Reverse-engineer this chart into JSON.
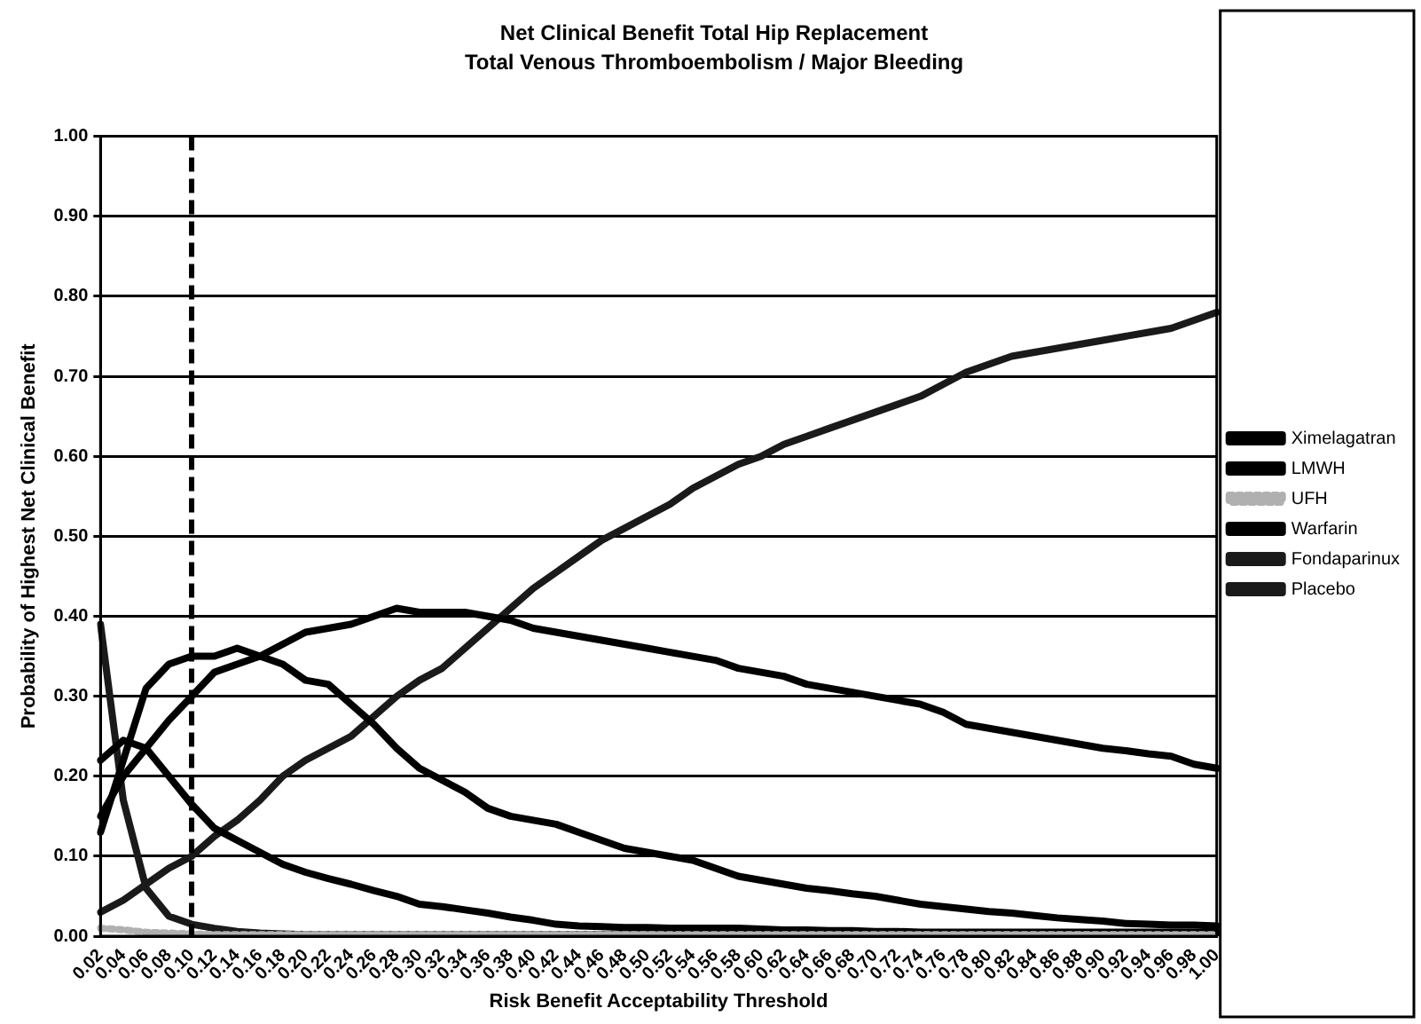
{
  "chart_data": {
    "type": "line",
    "title": "Net Clinical Benefit Total Hip Replacement",
    "subtitle": "Total Venous Thromboembolism / Major Bleeding",
    "xlabel": "Risk Benefit Acceptability Threshold",
    "ylabel": "Probability of Highest Net Clinical Benefit",
    "categories": [
      "0.02",
      "0.04",
      "0.06",
      "0.08",
      "0.10",
      "0.12",
      "0.14",
      "0.16",
      "0.18",
      "0.20",
      "0.22",
      "0.24",
      "0.26",
      "0.28",
      "0.30",
      "0.32",
      "0.34",
      "0.36",
      "0.38",
      "0.40",
      "0.42",
      "0.44",
      "0.46",
      "0.48",
      "0.50",
      "0.52",
      "0.54",
      "0.56",
      "0.58",
      "0.60",
      "0.62",
      "0.64",
      "0.66",
      "0.68",
      "0.70",
      "0.72",
      "0.74",
      "0.76",
      "0.78",
      "0.80",
      "0.82",
      "0.84",
      "0.86",
      "0.88",
      "0.90",
      "0.92",
      "0.94",
      "0.96",
      "0.98",
      "1.00"
    ],
    "series": [
      {
        "name": "Ximelagatran",
        "color": "#000000",
        "values": [
          0.15,
          0.2,
          0.235,
          0.27,
          0.3,
          0.33,
          0.34,
          0.35,
          0.365,
          0.38,
          0.385,
          0.39,
          0.4,
          0.41,
          0.405,
          0.405,
          0.405,
          0.4,
          0.395,
          0.385,
          0.38,
          0.375,
          0.37,
          0.365,
          0.36,
          0.355,
          0.35,
          0.345,
          0.335,
          0.33,
          0.325,
          0.315,
          0.31,
          0.305,
          0.3,
          0.295,
          0.29,
          0.28,
          0.265,
          0.26,
          0.255,
          0.25,
          0.245,
          0.24,
          0.235,
          0.232,
          0.228,
          0.225,
          0.215,
          0.21
        ]
      },
      {
        "name": "LMWH",
        "color": "#000000",
        "values": [
          0.13,
          0.22,
          0.31,
          0.34,
          0.35,
          0.35,
          0.36,
          0.35,
          0.34,
          0.32,
          0.315,
          0.29,
          0.265,
          0.235,
          0.21,
          0.195,
          0.18,
          0.16,
          0.15,
          0.145,
          0.14,
          0.13,
          0.12,
          0.11,
          0.105,
          0.1,
          0.095,
          0.085,
          0.075,
          0.07,
          0.065,
          0.06,
          0.057,
          0.053,
          0.05,
          0.045,
          0.04,
          0.037,
          0.034,
          0.031,
          0.029,
          0.026,
          0.023,
          0.021,
          0.019,
          0.016,
          0.015,
          0.014,
          0.014,
          0.013
        ]
      },
      {
        "name": "UFH",
        "color": "#b0b0b0",
        "line_style": "dotted",
        "values": [
          0.01,
          0.008,
          0.005,
          0.004,
          0.003,
          0.002,
          0.002,
          0.002,
          0.002,
          0.002,
          0.002,
          0.002,
          0.002,
          0.002,
          0.002,
          0.002,
          0.002,
          0.002,
          0.002,
          0.002,
          0.002,
          0.002,
          0.002,
          0.002,
          0.002,
          0.002,
          0.002,
          0.002,
          0.002,
          0.002,
          0.002,
          0.002,
          0.002,
          0.002,
          0.002,
          0.002,
          0.002,
          0.002,
          0.002,
          0.002,
          0.002,
          0.002,
          0.002,
          0.002,
          0.002,
          0.002,
          0.002,
          0.002,
          0.002,
          0.002
        ]
      },
      {
        "name": "Warfarin",
        "color": "#000000",
        "values": [
          0.22,
          0.245,
          0.235,
          0.2,
          0.165,
          0.135,
          0.12,
          0.105,
          0.09,
          0.08,
          0.072,
          0.065,
          0.057,
          0.05,
          0.04,
          0.037,
          0.033,
          0.029,
          0.024,
          0.02,
          0.015,
          0.013,
          0.012,
          0.011,
          0.011,
          0.01,
          0.01,
          0.01,
          0.01,
          0.009,
          0.008,
          0.008,
          0.007,
          0.007,
          0.006,
          0.006,
          0.005,
          0.005,
          0.005,
          0.005,
          0.005,
          0.005,
          0.005,
          0.005,
          0.005,
          0.005,
          0.005,
          0.005,
          0.005,
          0.005
        ]
      },
      {
        "name": "Fondaparinux",
        "color": "#1a1a1a",
        "values": [
          0.03,
          0.045,
          0.065,
          0.085,
          0.1,
          0.125,
          0.145,
          0.17,
          0.2,
          0.22,
          0.235,
          0.25,
          0.275,
          0.3,
          0.32,
          0.335,
          0.36,
          0.385,
          0.41,
          0.435,
          0.455,
          0.475,
          0.495,
          0.51,
          0.525,
          0.54,
          0.56,
          0.575,
          0.59,
          0.6,
          0.615,
          0.625,
          0.635,
          0.645,
          0.655,
          0.665,
          0.675,
          0.69,
          0.705,
          0.715,
          0.725,
          0.73,
          0.735,
          0.74,
          0.745,
          0.75,
          0.755,
          0.76,
          0.77,
          0.78
        ]
      },
      {
        "name": "Placebo",
        "color": "#1a1a1a",
        "values": [
          0.39,
          0.17,
          0.06,
          0.025,
          0.015,
          0.01,
          0.006,
          0.004,
          0.003,
          0.002,
          0.002,
          0.002,
          0.002,
          0.002,
          0.002,
          0.002,
          0.002,
          0.002,
          0.002,
          0.002,
          0.002,
          0.002,
          0.002,
          0.002,
          0.002,
          0.002,
          0.002,
          0.002,
          0.002,
          0.002,
          0.002,
          0.002,
          0.002,
          0.002,
          0.002,
          0.002,
          0.002,
          0.002,
          0.002,
          0.002,
          0.002,
          0.002,
          0.002,
          0.002,
          0.002,
          0.002,
          0.002,
          0.002,
          0.002,
          0.002
        ]
      }
    ],
    "ylim": [
      0,
      1
    ],
    "yticks": [
      {
        "value": 0,
        "label": "0.00"
      },
      {
        "value": 0.1,
        "label": "0.10"
      },
      {
        "value": 0.2,
        "label": "0.20"
      },
      {
        "value": 0.3,
        "label": "0.30"
      },
      {
        "value": 0.4,
        "label": "0.40"
      },
      {
        "value": 0.5,
        "label": "0.50"
      },
      {
        "value": 0.6,
        "label": "0.60"
      },
      {
        "value": 0.7,
        "label": "0.70"
      },
      {
        "value": 0.8,
        "label": "0.80"
      },
      {
        "value": 0.9,
        "label": "0.90"
      },
      {
        "value": 1,
        "label": "1.00"
      }
    ],
    "ref_lines": [
      {
        "axis": "x",
        "value": "0.10",
        "color": "#000000",
        "line_style": "dashed"
      }
    ],
    "grid": "y",
    "legend": "right",
    "marker": "none",
    "line_style": "solid"
  }
}
